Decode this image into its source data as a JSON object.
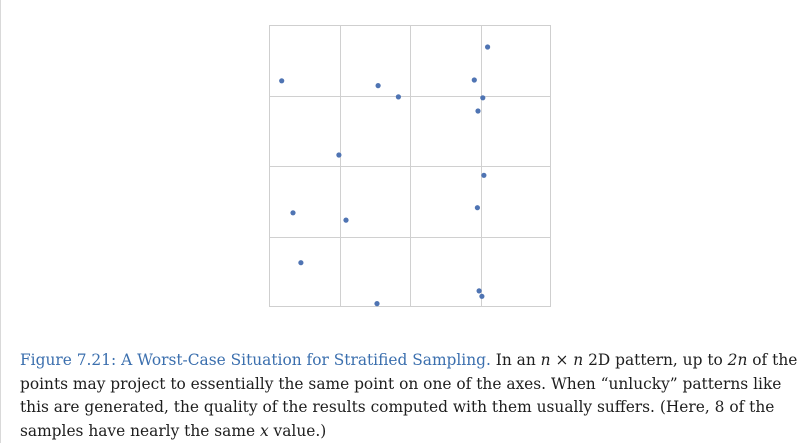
{
  "figure": {
    "grid": {
      "rows": 4,
      "cols": 4
    },
    "colors": {
      "point": "#4f74b3",
      "grid_line": "#d0d0d0",
      "frame": "#cfcfcf"
    },
    "points": [
      {
        "x": 0.045,
        "y": 0.802
      },
      {
        "x": 0.085,
        "y": 0.334
      },
      {
        "x": 0.113,
        "y": 0.157
      },
      {
        "x": 0.248,
        "y": 0.539
      },
      {
        "x": 0.273,
        "y": 0.308
      },
      {
        "x": 0.387,
        "y": 0.785
      },
      {
        "x": 0.383,
        "y": 0.012
      },
      {
        "x": 0.459,
        "y": 0.745
      },
      {
        "x": 0.728,
        "y": 0.805
      },
      {
        "x": 0.741,
        "y": 0.695
      },
      {
        "x": 0.739,
        "y": 0.352
      },
      {
        "x": 0.745,
        "y": 0.057
      },
      {
        "x": 0.758,
        "y": 0.742
      },
      {
        "x": 0.762,
        "y": 0.467
      },
      {
        "x": 0.755,
        "y": 0.038
      },
      {
        "x": 0.775,
        "y": 0.922
      }
    ]
  },
  "caption": {
    "figure_label": "Figure 7.21: A Worst-Case Situation for Stratified Sampling.",
    "segment_1": " In an ",
    "math_n1": "n",
    "times": " × ",
    "math_n2": "n",
    "segment_2": " 2D pattern, up to ",
    "math_2n": "2n",
    "segment_3": " of the points may project to essentially the same point on one of the axes. When “unlucky” patterns like this are generated, the quality of the results computed with them usually suffers. (Here, 8 of the samples have nearly the same ",
    "math_x": "x",
    "segment_4": " value.)"
  }
}
